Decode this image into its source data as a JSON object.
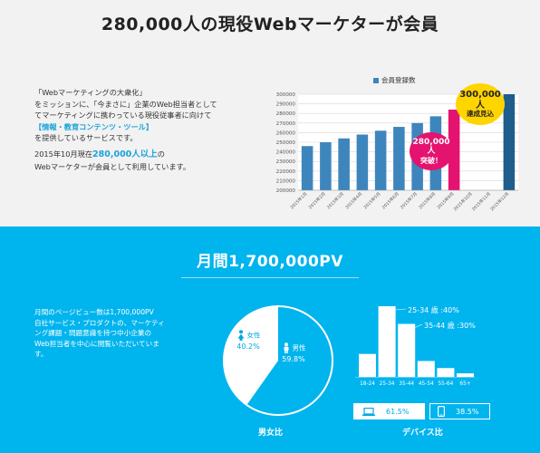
{
  "top": {
    "title": "280,000人の現役Webマーケターが会員",
    "intro_lines": [
      "「Webマーケティングの大衆化」",
      "をミッションに、「今まさに」企業のWeb担当者として",
      "てマーケティングに携わっている現役従事者に向けて"
    ],
    "intro_highlight": "【情報・教育コンテンツ・ツール】",
    "intro_end": "を提供しているサービスです。",
    "status_line1_pre": "2015年10月現在",
    "status_line1_num": "280,000人以上",
    "status_line1_post": "の",
    "status_line2": "Webマーケターが会員として利用しています。"
  },
  "chart_data": {
    "type": "bar",
    "title": "",
    "legend": [
      "会員登録数"
    ],
    "legend_position": "top",
    "categories": [
      "2015年1月",
      "2015年2月",
      "2015年3月",
      "2015年4月",
      "2015年5月",
      "2015年6月",
      "2015年7月",
      "2015年8月",
      "2015年9月",
      "2015年10月",
      "2015年11月",
      "2015年12月"
    ],
    "series": [
      {
        "name": "会員登録数",
        "values": [
          246000,
          250000,
          254000,
          258000,
          262000,
          266000,
          270000,
          277000,
          284000,
          null,
          null,
          300000
        ]
      }
    ],
    "highlight_index": 8,
    "yticks": [
      200000,
      210000,
      220000,
      230000,
      240000,
      250000,
      260000,
      270000,
      280000,
      290000,
      300000
    ],
    "ylim": [
      200000,
      300000
    ],
    "grid": true,
    "colors": {
      "bar": "#3d86bd",
      "highlight": "#e4136f",
      "target": "#1e5d8c"
    }
  },
  "badges": {
    "red_line1": "280,000人",
    "red_line2": "突破！",
    "yellow_line1": "300,000人",
    "yellow_line2": "達成見込"
  },
  "pv": {
    "title": "月間1,700,000PV",
    "desc_lines": [
      "月間のページビュー数は1,700,000PV",
      "自社サービス・プロダクトの、マーケティ",
      "ング課題・問題意識を持つ中小企業の",
      "Web担当者を中心に閲覧いただいていま",
      "す。"
    ]
  },
  "gender": {
    "female_label": "女性",
    "female_pct": "40.2%",
    "female_value": 40.2,
    "male_label": "男性",
    "male_pct": "59.8%",
    "male_value": 59.8,
    "caption": "男女比",
    "icons": {
      "female": "female-person-icon",
      "male": "male-person-icon"
    }
  },
  "age": {
    "categories": [
      "18-24",
      "25-34",
      "35-44",
      "45-54",
      "55-64",
      "65+"
    ],
    "values": [
      13,
      40,
      30,
      9,
      5,
      2
    ],
    "annotations": [
      "25-34 歳 :40%",
      "35-44 歳 :30%"
    ]
  },
  "device": {
    "pc_pct": "61.5%",
    "sp_pct": "38.5%",
    "caption": "デバイス比",
    "icons": {
      "pc": "laptop-icon",
      "sp": "smartphone-icon"
    }
  }
}
